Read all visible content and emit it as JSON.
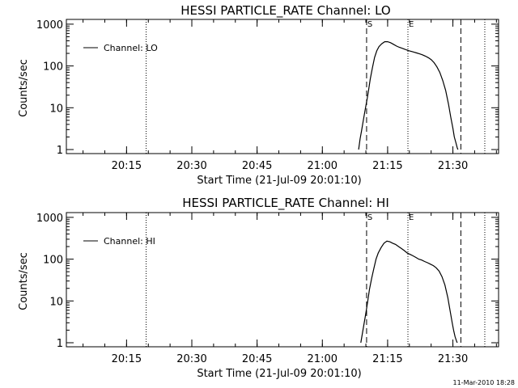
{
  "footer_timestamp": "11-Mar-2010 18:28",
  "chart_data": [
    {
      "type": "line",
      "title": "HESSI PARTICLE_RATE Channel: LO",
      "xlabel": "Start Time (21-Jul-09 20:01:10)",
      "ylabel": "Counts/sec",
      "yscale": "log",
      "xlim": [
        "20:01:10",
        "21:40:30"
      ],
      "ylim": [
        0.8,
        1300
      ],
      "x_ticks": [
        "20:15",
        "20:30",
        "20:45",
        "21:00",
        "21:15",
        "21:30"
      ],
      "y_ticks": [
        {
          "value": 1,
          "label": "1"
        },
        {
          "value": 10,
          "label": "10"
        },
        {
          "value": 100,
          "label": "100"
        },
        {
          "value": 1000,
          "label": "1000"
        }
      ],
      "vlines_dotted": [
        "20:19:30",
        "21:19:40",
        "21:37:20"
      ],
      "vlines_dashed": [
        "21:10:10",
        "21:31:50"
      ],
      "markers": [
        {
          "label": "S",
          "x": "21:10:10"
        },
        {
          "label": "E",
          "x": "21:19:40"
        }
      ],
      "legend": {
        "label": "Channel: LO",
        "position": "top-left"
      },
      "series": [
        {
          "name": "Channel: LO",
          "x": [
            "21:08:20",
            "21:08:40",
            "21:09:00",
            "21:09:20",
            "21:09:40",
            "21:10:00",
            "21:10:20",
            "21:10:40",
            "21:11:00",
            "21:11:30",
            "21:12:00",
            "21:12:30",
            "21:13:00",
            "21:13:40",
            "21:14:20",
            "21:15:00",
            "21:15:40",
            "21:16:20",
            "21:17:00",
            "21:17:40",
            "21:18:20",
            "21:19:00",
            "21:19:40",
            "21:20:20",
            "21:21:00",
            "21:21:40",
            "21:22:20",
            "21:23:00",
            "21:23:40",
            "21:24:20",
            "21:25:00",
            "21:25:40",
            "21:26:20",
            "21:27:00",
            "21:27:40",
            "21:28:20",
            "21:29:00",
            "21:29:30",
            "21:30:00",
            "21:30:20",
            "21:30:40",
            "21:31:00",
            "21:31:10"
          ],
          "y": [
            1.0,
            1.8,
            2.8,
            4.5,
            7,
            11,
            17,
            28,
            48,
            90,
            160,
            230,
            290,
            340,
            380,
            380,
            360,
            330,
            300,
            280,
            265,
            250,
            235,
            225,
            215,
            205,
            195,
            185,
            172,
            158,
            142,
            120,
            95,
            70,
            45,
            26,
            12,
            6,
            3.2,
            2.0,
            1.5,
            1.1,
            1.0
          ]
        }
      ]
    },
    {
      "type": "line",
      "title": "HESSI PARTICLE_RATE Channel: HI",
      "xlabel": "Start Time (21-Jul-09 20:01:10)",
      "ylabel": "Counts/sec",
      "yscale": "log",
      "xlim": [
        "20:01:10",
        "21:40:30"
      ],
      "ylim": [
        0.8,
        1300
      ],
      "x_ticks": [
        "20:15",
        "20:30",
        "20:45",
        "21:00",
        "21:15",
        "21:30"
      ],
      "y_ticks": [
        {
          "value": 1,
          "label": "1"
        },
        {
          "value": 10,
          "label": "10"
        },
        {
          "value": 100,
          "label": "100"
        },
        {
          "value": 1000,
          "label": "1000"
        }
      ],
      "vlines_dotted": [
        "20:19:30",
        "21:19:40",
        "21:37:20"
      ],
      "vlines_dashed": [
        "21:10:10",
        "21:31:50"
      ],
      "markers": [
        {
          "label": "S",
          "x": "21:10:10"
        },
        {
          "label": "E",
          "x": "21:19:40"
        }
      ],
      "legend": {
        "label": "Channel: HI",
        "position": "top-left"
      },
      "series": [
        {
          "name": "Channel: HI",
          "x": [
            "21:08:50",
            "21:09:10",
            "21:09:30",
            "21:09:50",
            "21:10:10",
            "21:10:30",
            "21:10:50",
            "21:11:20",
            "21:11:50",
            "21:12:20",
            "21:12:50",
            "21:13:30",
            "21:14:10",
            "21:14:50",
            "21:15:30",
            "21:16:10",
            "21:16:50",
            "21:17:30",
            "21:18:10",
            "21:18:50",
            "21:19:30",
            "21:20:10",
            "21:20:50",
            "21:21:30",
            "21:22:10",
            "21:22:50",
            "21:23:30",
            "21:24:10",
            "21:24:50",
            "21:25:30",
            "21:26:10",
            "21:26:50",
            "21:27:30",
            "21:28:10",
            "21:28:50",
            "21:29:20",
            "21:29:50",
            "21:30:10",
            "21:30:30",
            "21:30:50",
            "21:31:00"
          ],
          "y": [
            1.0,
            1.6,
            2.5,
            4,
            6.5,
            11,
            19,
            35,
            60,
            100,
            140,
            190,
            240,
            270,
            260,
            240,
            225,
            200,
            180,
            160,
            140,
            130,
            120,
            110,
            100,
            95,
            88,
            82,
            76,
            70,
            62,
            52,
            38,
            24,
            12,
            6,
            3.0,
            2.0,
            1.4,
            1.1,
            1.0
          ]
        }
      ]
    }
  ]
}
